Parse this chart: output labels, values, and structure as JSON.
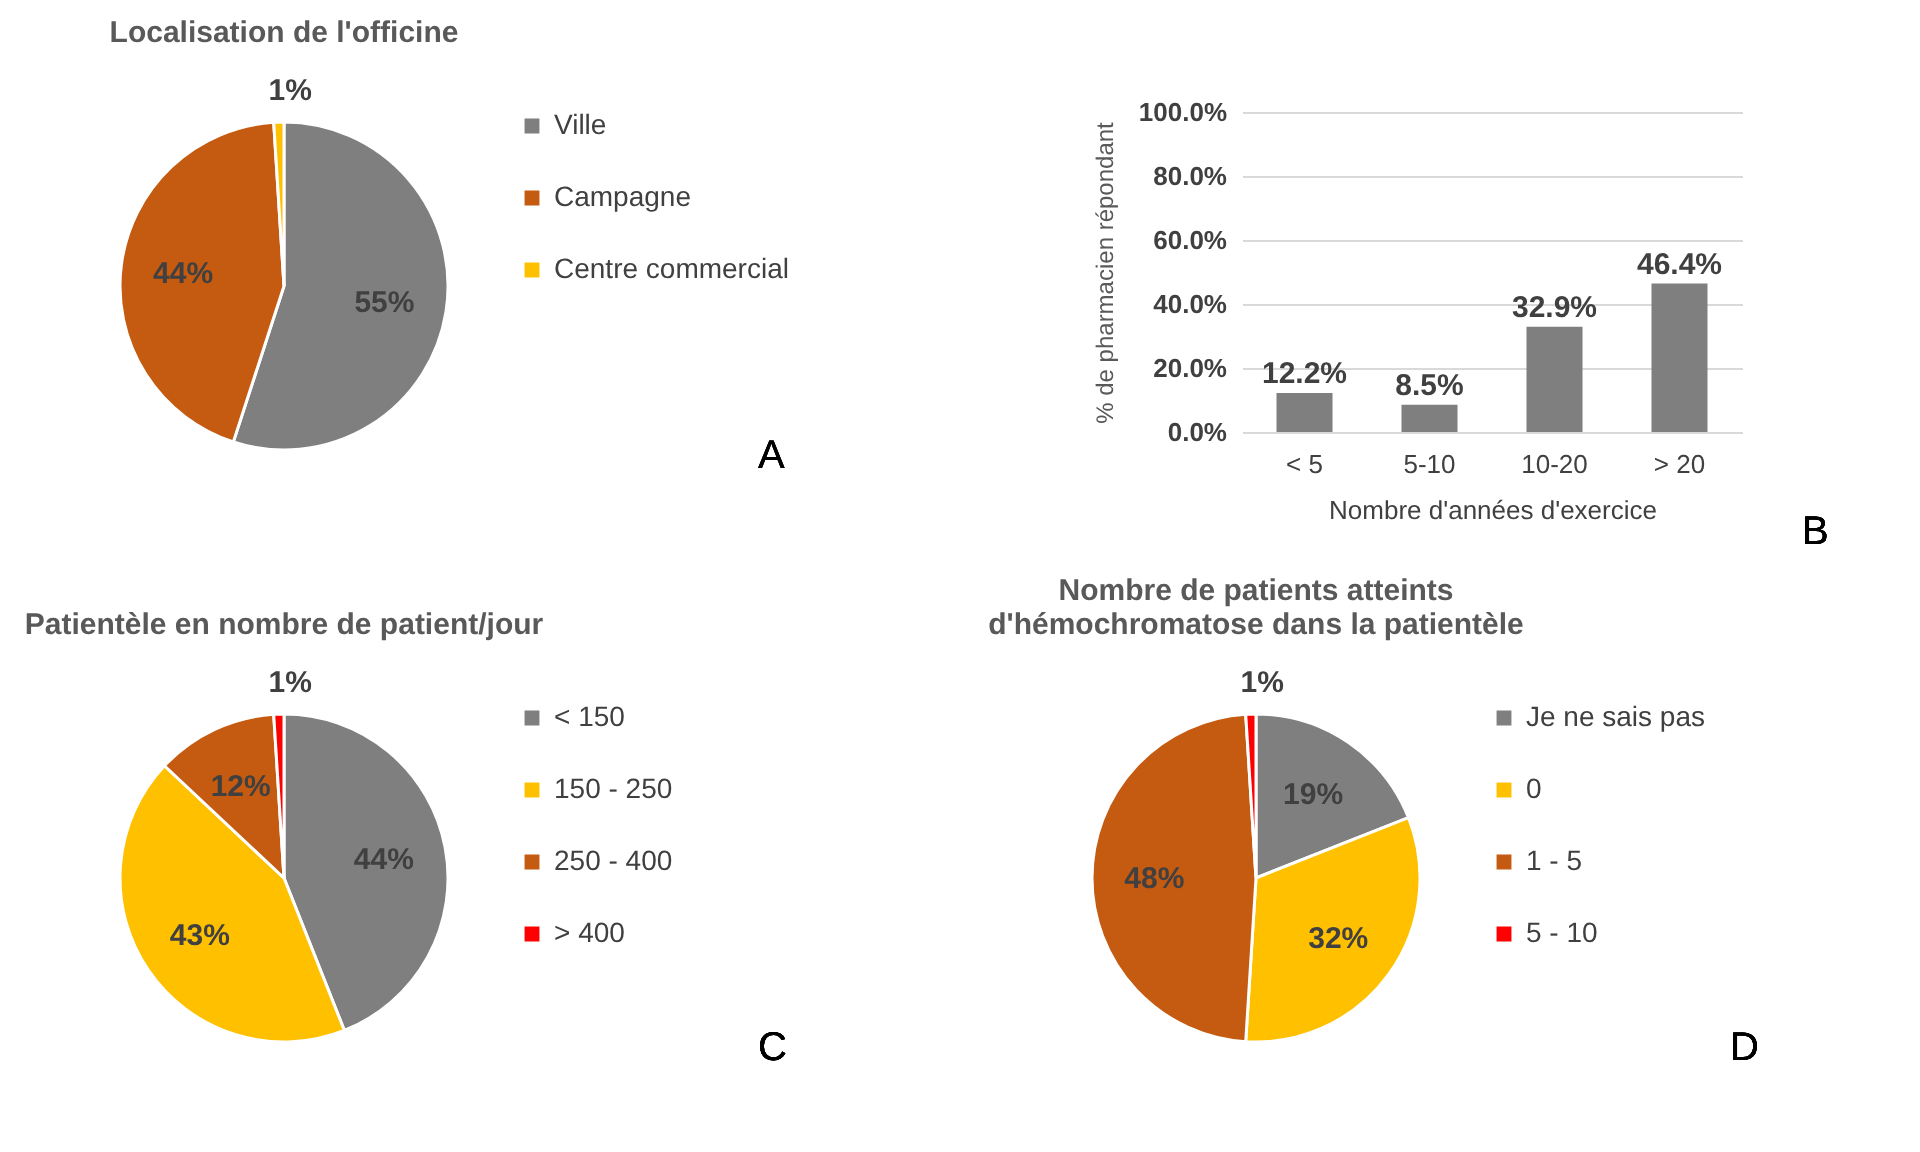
{
  "chart_data": [
    {
      "type": "pie",
      "title": "Localisation de l'officine",
      "categories": [
        "Ville",
        "Campagne",
        "Centre commercial"
      ],
      "values": [
        55,
        44,
        1
      ],
      "colors": [
        "#7f7f7f",
        "#c55a11",
        "#ffc000"
      ],
      "value_labels": [
        "55%",
        "44%",
        "1%"
      ],
      "legend": "right",
      "annotations": [
        "A"
      ]
    },
    {
      "type": "bar",
      "categories": [
        "< 5",
        "5-10",
        "10-20",
        "> 20"
      ],
      "values": [
        12.2,
        8.5,
        32.9,
        46.4
      ],
      "color": "#7f7f7f",
      "value_labels": [
        "12.2%",
        "8.5%",
        "32.9%",
        "46.4%"
      ],
      "xlabel": "Nombre d'années d'exercice",
      "ylabel": "% de pharmacien répondant",
      "ylim": [
        0,
        100
      ],
      "yticks": [
        {
          "value": 0,
          "label": "0.0%"
        },
        {
          "value": 20,
          "label": "20.0%"
        },
        {
          "value": 40,
          "label": "40.0%"
        },
        {
          "value": 60,
          "label": "60.0%"
        },
        {
          "value": 80,
          "label": "80.0%"
        },
        {
          "value": 100,
          "label": "100.0%"
        }
      ],
      "grid": "y",
      "annotations": [
        "B"
      ]
    },
    {
      "type": "pie",
      "title": "Patientèle en nombre de patient/jour",
      "categories": [
        "< 150",
        "150 - 250",
        "250 - 400",
        "> 400"
      ],
      "values": [
        44,
        43,
        12,
        1
      ],
      "colors": [
        "#7f7f7f",
        "#ffc000",
        "#c55a11",
        "#ff0000"
      ],
      "value_labels": [
        "44%",
        "43%",
        "12%",
        "1%"
      ],
      "legend": "right",
      "annotations": [
        "C"
      ]
    },
    {
      "type": "pie",
      "title": "Nombre de patients atteints d'hémochromatose dans la patientèle",
      "categories": [
        "Je ne sais pas",
        "0",
        "1 - 5",
        "5 - 10"
      ],
      "values": [
        19,
        32,
        48,
        1
      ],
      "colors": [
        "#7f7f7f",
        "#ffc000",
        "#c55a11",
        "#ff0000"
      ],
      "value_labels": [
        "19%",
        "32%",
        "48%",
        "1%"
      ],
      "legend": "right",
      "annotations": [
        "D"
      ]
    }
  ]
}
